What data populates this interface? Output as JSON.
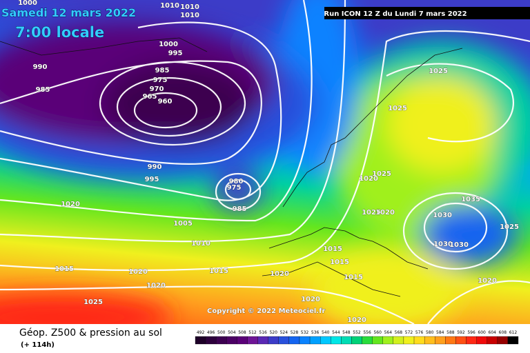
{
  "header": {
    "date": "Samedi 12 mars 2022",
    "time": "7:00 locale",
    "run": "Run ICON 12 Z du Lundi 7 mars 2022"
  },
  "copyright": "Copyright © 2022 Meteociel.fr",
  "footer": {
    "title": "Géop. Z500 & pression au sol",
    "lead": "(+ 114h)"
  },
  "isobars": [
    1000,
    1010,
    1010,
    1010,
    1000,
    995,
    990,
    985,
    985,
    975,
    970,
    965,
    960,
    990,
    995,
    980,
    975,
    985,
    1020,
    1005,
    1010,
    1015,
    1020,
    1015,
    1020,
    1020,
    1025,
    1025,
    1025,
    1025,
    1020,
    1025,
    1020,
    1035,
    1030,
    1025,
    1030,
    1030,
    1015,
    1015,
    1015,
    1020,
    1020,
    1020
  ],
  "scale": {
    "values": [
      492,
      496,
      500,
      504,
      508,
      512,
      516,
      520,
      524,
      528,
      532,
      536,
      540,
      544,
      548,
      552,
      556,
      560,
      564,
      568,
      572,
      576,
      580,
      584,
      588,
      592,
      596,
      600,
      604,
      608,
      612
    ],
    "colors": [
      "#1e0028",
      "#2d003c",
      "#3c0050",
      "#4b0064",
      "#5a0078",
      "#6e1496",
      "#5a28b4",
      "#3c3cc8",
      "#2850dc",
      "#1464f0",
      "#0a82ff",
      "#00a0ff",
      "#00c8ff",
      "#00e6e6",
      "#00dcb4",
      "#00d278",
      "#28dc3c",
      "#64e61e",
      "#a0f01e",
      "#d2f01e",
      "#f0f01e",
      "#ffdc1e",
      "#ffbe1e",
      "#ffa01e",
      "#ff7814",
      "#ff5014",
      "#ff2814",
      "#f00a0a",
      "#c80000",
      "#960000",
      "#000000"
    ]
  }
}
